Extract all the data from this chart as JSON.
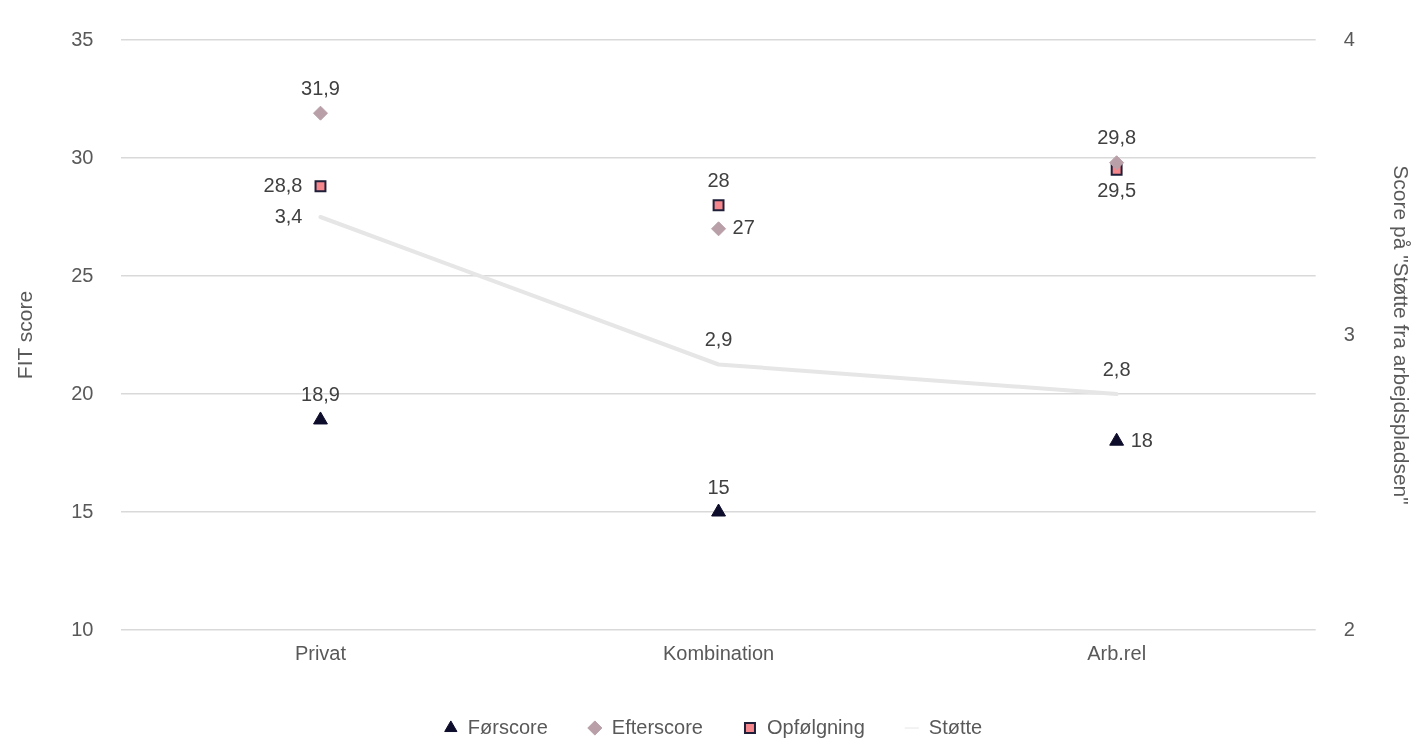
{
  "chart_data": {
    "type": "scatter",
    "xlabel": null,
    "ylabel": "FIT score",
    "y2label": "Score på \"Støtte fra arbejdspladsen\"",
    "categories": [
      "Privat",
      "Kombination",
      "Arb.rel"
    ],
    "series": [
      {
        "name": "Førscore",
        "marker": "triangle",
        "color": "#0d0d2b",
        "values": [
          18.9,
          15,
          18
        ],
        "value_labels": [
          "18,9",
          "15",
          "18"
        ]
      },
      {
        "name": "Efterscore",
        "marker": "diamond",
        "color": "#b9a0a8",
        "values": [
          31.9,
          27,
          29.8
        ],
        "value_labels": [
          "31,9",
          "27",
          "29,8"
        ]
      },
      {
        "name": "Opfølgning",
        "marker": "square",
        "color": "#f4868c",
        "values": [
          28.8,
          28,
          29.5
        ],
        "value_labels": [
          "28,8",
          "28",
          "29,5"
        ]
      },
      {
        "name": "Støtte",
        "type": "line",
        "axis": "y2",
        "marker": "none",
        "color": "#e6e6e6",
        "values": [
          3.4,
          2.9,
          2.8
        ],
        "value_labels": [
          "3,4",
          "2,9",
          "2,8"
        ]
      }
    ],
    "ylim": [
      10,
      35
    ],
    "yticks": [
      10,
      15,
      20,
      25,
      30,
      35
    ],
    "y2lim": [
      2,
      4
    ],
    "y2ticks": [
      2,
      3,
      4
    ],
    "grid": "y",
    "legend": "bottom"
  }
}
